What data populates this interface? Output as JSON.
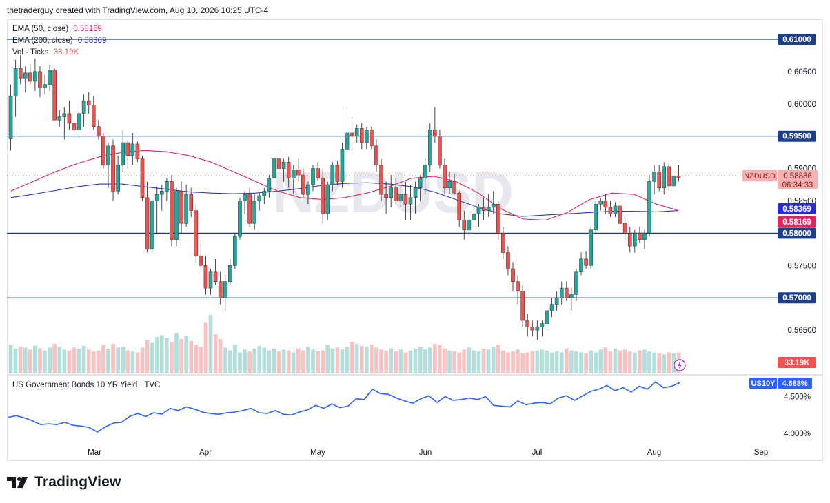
{
  "header": {
    "attribution": "thetraderguy created with TradingView.com, Aug 10, 2026 10:25 UTC-4"
  },
  "legend": {
    "ema50_label": "EMA (50, close)",
    "ema50_value": "0.58169",
    "ema200_label": "EMA (200, close)",
    "ema200_value": "0.58369",
    "vol_label": "Vol · Ticks",
    "vol_value": "33.19K"
  },
  "watermark": "NZDUSD",
  "lower_pane": {
    "title": "US Government Bonds 10 YR Yield · TVC",
    "badge_symbol": "US10Y",
    "badge_value": "4.688%"
  },
  "price_axis": {
    "ticks": [
      "0.60500",
      "0.60000",
      "0.58500",
      "0.57500",
      "0.56500"
    ],
    "level_labels": [
      "0.61000",
      "0.59500",
      "0.58000",
      "0.57000"
    ]
  },
  "badges": {
    "symbol": "NZDUSD",
    "last_price": "0.58886",
    "countdown": "06:34:33",
    "ema200": "0.58369",
    "ema50": "0.58169",
    "volume": "33.19K"
  },
  "yield_axis": {
    "ticks": [
      "4.500%",
      "4.000%"
    ]
  },
  "time_axis": {
    "labels": [
      "Mar",
      "Apr",
      "May",
      "Jun",
      "Jul",
      "Aug",
      "Sep"
    ]
  },
  "brand": {
    "name": "TradingView"
  },
  "colors": {
    "up": "#26a69a",
    "down": "#ef5350",
    "vol_up": "#b2dfdb",
    "vol_down": "#f9c2c2",
    "ema50": "#e0245e",
    "ema200": "#3333cc",
    "yield": "#2962ff",
    "level": "#1e3f8a"
  },
  "chart_data": [
    {
      "type": "candlestick",
      "title": "NZDUSD",
      "ylim": [
        0.5615,
        0.6135
      ],
      "x_labels": [
        "Mar",
        "Apr",
        "May",
        "Jun",
        "Jul",
        "Aug",
        "Sep"
      ],
      "horizontal_levels": [
        0.61,
        0.595,
        0.58,
        0.57
      ],
      "last_price": 0.58886,
      "ohlc": [
        [
          0.5946,
          0.603,
          0.5928,
          0.6012
        ],
        [
          0.6012,
          0.6068,
          0.598,
          0.6055
        ],
        [
          0.6055,
          0.6075,
          0.603,
          0.604
        ],
        [
          0.604,
          0.6058,
          0.6018,
          0.6048
        ],
        [
          0.6048,
          0.6062,
          0.603,
          0.6035
        ],
        [
          0.6035,
          0.607,
          0.602,
          0.605
        ],
        [
          0.605,
          0.6058,
          0.601,
          0.6025
        ],
        [
          0.6025,
          0.6045,
          0.6015,
          0.603
        ],
        [
          0.603,
          0.606,
          0.602,
          0.6052
        ],
        [
          0.6052,
          0.6055,
          0.598,
          0.5975
        ],
        [
          0.5975,
          0.599,
          0.5965,
          0.598
        ],
        [
          0.598,
          0.5995,
          0.5945,
          0.5985
        ],
        [
          0.5985,
          0.6005,
          0.596,
          0.597
        ],
        [
          0.597,
          0.5985,
          0.5948,
          0.596
        ],
        [
          0.596,
          0.599,
          0.595,
          0.5985
        ],
        [
          0.5985,
          0.6015,
          0.5965,
          0.6005
        ],
        [
          0.6005,
          0.6018,
          0.5985,
          0.5998
        ],
        [
          0.5998,
          0.6012,
          0.596,
          0.5965
        ],
        [
          0.5965,
          0.5975,
          0.5945,
          0.595
        ],
        [
          0.595,
          0.5955,
          0.59,
          0.5905
        ],
        [
          0.5905,
          0.594,
          0.587,
          0.5935
        ],
        [
          0.5935,
          0.5945,
          0.585,
          0.5865
        ],
        [
          0.5865,
          0.592,
          0.586,
          0.5905
        ],
        [
          0.5905,
          0.596,
          0.5895,
          0.594
        ],
        [
          0.594,
          0.5945,
          0.59,
          0.592
        ],
        [
          0.592,
          0.5955,
          0.5905,
          0.5938
        ],
        [
          0.5938,
          0.5942,
          0.591,
          0.5915
        ],
        [
          0.5915,
          0.592,
          0.585,
          0.5855
        ],
        [
          0.5855,
          0.588,
          0.577,
          0.5775
        ],
        [
          0.5775,
          0.586,
          0.577,
          0.585
        ],
        [
          0.585,
          0.5872,
          0.58,
          0.586
        ],
        [
          0.586,
          0.5875,
          0.5835,
          0.5865
        ],
        [
          0.5865,
          0.5885,
          0.585,
          0.588
        ],
        [
          0.588,
          0.589,
          0.578,
          0.579
        ],
        [
          0.579,
          0.587,
          0.578,
          0.5865
        ],
        [
          0.5865,
          0.588,
          0.58,
          0.5815
        ],
        [
          0.5815,
          0.5875,
          0.581,
          0.586
        ],
        [
          0.586,
          0.587,
          0.5825,
          0.5835
        ],
        [
          0.5835,
          0.5845,
          0.5755,
          0.5765
        ],
        [
          0.5765,
          0.579,
          0.574,
          0.575
        ],
        [
          0.575,
          0.5765,
          0.5705,
          0.5715
        ],
        [
          0.5715,
          0.5745,
          0.5705,
          0.574
        ],
        [
          0.574,
          0.576,
          0.572,
          0.5725
        ],
        [
          0.5725,
          0.574,
          0.569,
          0.57
        ],
        [
          0.57,
          0.5735,
          0.568,
          0.5725
        ],
        [
          0.5725,
          0.576,
          0.572,
          0.575
        ],
        [
          0.575,
          0.58,
          0.5745,
          0.5795
        ],
        [
          0.5795,
          0.5855,
          0.579,
          0.585
        ],
        [
          0.585,
          0.5865,
          0.583,
          0.586
        ],
        [
          0.586,
          0.587,
          0.581,
          0.5815
        ],
        [
          0.5815,
          0.586,
          0.5805,
          0.585
        ],
        [
          0.585,
          0.5862,
          0.5835,
          0.5858
        ],
        [
          0.5858,
          0.587,
          0.5845,
          0.5865
        ],
        [
          0.5865,
          0.589,
          0.5855,
          0.5885
        ],
        [
          0.5885,
          0.592,
          0.588,
          0.5915
        ],
        [
          0.5915,
          0.5925,
          0.5895,
          0.59
        ],
        [
          0.59,
          0.5915,
          0.588,
          0.591
        ],
        [
          0.591,
          0.5918,
          0.587,
          0.5885
        ],
        [
          0.5885,
          0.5905,
          0.586,
          0.5898
        ],
        [
          0.5898,
          0.5915,
          0.588,
          0.589
        ],
        [
          0.589,
          0.59,
          0.5855,
          0.586
        ],
        [
          0.586,
          0.588,
          0.5845,
          0.5875
        ],
        [
          0.5875,
          0.5905,
          0.5865,
          0.59
        ],
        [
          0.59,
          0.591,
          0.588,
          0.5885
        ],
        [
          0.5885,
          0.59,
          0.5815,
          0.583
        ],
        [
          0.583,
          0.588,
          0.582,
          0.5875
        ],
        [
          0.5875,
          0.591,
          0.5865,
          0.5905
        ],
        [
          0.5905,
          0.5912,
          0.5875,
          0.588
        ],
        [
          0.588,
          0.594,
          0.587,
          0.593
        ],
        [
          0.593,
          0.5995,
          0.5925,
          0.5955
        ],
        [
          0.5955,
          0.5975,
          0.593,
          0.595
        ],
        [
          0.595,
          0.5968,
          0.594,
          0.5962
        ],
        [
          0.5962,
          0.597,
          0.593,
          0.594
        ],
        [
          0.594,
          0.5965,
          0.593,
          0.596
        ],
        [
          0.596,
          0.5965,
          0.593,
          0.5935
        ],
        [
          0.5935,
          0.5945,
          0.5895,
          0.5905
        ],
        [
          0.5905,
          0.5915,
          0.585,
          0.586
        ],
        [
          0.586,
          0.588,
          0.583,
          0.5855
        ],
        [
          0.5855,
          0.589,
          0.584,
          0.587
        ],
        [
          0.587,
          0.5885,
          0.5845,
          0.585
        ],
        [
          0.585,
          0.5875,
          0.584,
          0.586
        ],
        [
          0.586,
          0.588,
          0.582,
          0.5845
        ],
        [
          0.5845,
          0.5875,
          0.582,
          0.5855
        ],
        [
          0.5855,
          0.588,
          0.583,
          0.587
        ],
        [
          0.587,
          0.589,
          0.585,
          0.5885
        ],
        [
          0.5885,
          0.5915,
          0.586,
          0.5905
        ],
        [
          0.5905,
          0.597,
          0.5895,
          0.596
        ],
        [
          0.596,
          0.5995,
          0.594,
          0.595
        ],
        [
          0.595,
          0.596,
          0.59,
          0.5905
        ],
        [
          0.5905,
          0.5915,
          0.586,
          0.587
        ],
        [
          0.587,
          0.5895,
          0.586,
          0.588
        ],
        [
          0.588,
          0.5892,
          0.586,
          0.5862
        ],
        [
          0.5862,
          0.5865,
          0.581,
          0.582
        ],
        [
          0.582,
          0.5835,
          0.579,
          0.5805
        ],
        [
          0.5805,
          0.583,
          0.5795,
          0.582
        ],
        [
          0.582,
          0.586,
          0.581,
          0.583
        ],
        [
          0.583,
          0.5845,
          0.581,
          0.584
        ],
        [
          0.584,
          0.5855,
          0.582,
          0.5835
        ],
        [
          0.5835,
          0.586,
          0.5825,
          0.584
        ],
        [
          0.584,
          0.5865,
          0.583,
          0.5845
        ],
        [
          0.5845,
          0.585,
          0.579,
          0.58
        ],
        [
          0.58,
          0.581,
          0.576,
          0.577
        ],
        [
          0.577,
          0.578,
          0.5735,
          0.5745
        ],
        [
          0.5745,
          0.5755,
          0.571,
          0.5725
        ],
        [
          0.5725,
          0.5735,
          0.569,
          0.571
        ],
        [
          0.571,
          0.572,
          0.5655,
          0.5665
        ],
        [
          0.5665,
          0.5675,
          0.564,
          0.5655
        ],
        [
          0.5655,
          0.5665,
          0.564,
          0.565
        ],
        [
          0.565,
          0.5665,
          0.5635,
          0.5655
        ],
        [
          0.5655,
          0.5665,
          0.564,
          0.566
        ],
        [
          0.566,
          0.569,
          0.565,
          0.568
        ],
        [
          0.568,
          0.57,
          0.567,
          0.569
        ],
        [
          0.569,
          0.571,
          0.568,
          0.57
        ],
        [
          0.57,
          0.5725,
          0.569,
          0.5715
        ],
        [
          0.5715,
          0.5725,
          0.5695,
          0.57
        ],
        [
          0.57,
          0.5715,
          0.568,
          0.5705
        ],
        [
          0.5705,
          0.5745,
          0.5695,
          0.574
        ],
        [
          0.574,
          0.577,
          0.5735,
          0.576
        ],
        [
          0.576,
          0.5772,
          0.5745,
          0.575
        ],
        [
          0.575,
          0.581,
          0.5745,
          0.5805
        ],
        [
          0.5805,
          0.585,
          0.58,
          0.5845
        ],
        [
          0.5845,
          0.5855,
          0.5835,
          0.585
        ],
        [
          0.585,
          0.586,
          0.583,
          0.584
        ],
        [
          0.584,
          0.585,
          0.5825,
          0.583
        ],
        [
          0.583,
          0.5848,
          0.5825,
          0.5842
        ],
        [
          0.5842,
          0.585,
          0.581,
          0.5815
        ],
        [
          0.5815,
          0.5825,
          0.579,
          0.58
        ],
        [
          0.58,
          0.581,
          0.577,
          0.578
        ],
        [
          0.578,
          0.5805,
          0.577,
          0.58
        ],
        [
          0.58,
          0.581,
          0.5785,
          0.579
        ],
        [
          0.579,
          0.5805,
          0.5775,
          0.58
        ],
        [
          0.58,
          0.589,
          0.5795,
          0.588
        ],
        [
          0.588,
          0.5905,
          0.586,
          0.5895
        ],
        [
          0.5895,
          0.5905,
          0.5865,
          0.587
        ],
        [
          0.587,
          0.591,
          0.586,
          0.5903
        ],
        [
          0.5903,
          0.5908,
          0.5865,
          0.5873
        ],
        [
          0.5873,
          0.5895,
          0.5868,
          0.5888
        ],
        [
          0.5888,
          0.5905,
          0.588,
          0.5886
        ]
      ],
      "volume": [
        30,
        26,
        28,
        27,
        25,
        29,
        26,
        24,
        27,
        31,
        28,
        25,
        24,
        27,
        26,
        29,
        25,
        23,
        24,
        30,
        26,
        31,
        27,
        28,
        24,
        23,
        22,
        27,
        35,
        32,
        38,
        40,
        37,
        33,
        42,
        36,
        39,
        34,
        30,
        28,
        45,
        52,
        41,
        36,
        27,
        24,
        30,
        22,
        25,
        23,
        26,
        29,
        27,
        24,
        26,
        23,
        25,
        24,
        22,
        26,
        24,
        28,
        25,
        23,
        24,
        30,
        26,
        27,
        25,
        28,
        33,
        31,
        29,
        28,
        30,
        27,
        25,
        24,
        26,
        23,
        25,
        22,
        24,
        26,
        28,
        25,
        27,
        31,
        30,
        26,
        24,
        23,
        22,
        25,
        27,
        24,
        23,
        26,
        25,
        28,
        30,
        24,
        22,
        23,
        25,
        21,
        22,
        23,
        24,
        25,
        24,
        22,
        23,
        22,
        26,
        24,
        23,
        22,
        21,
        24,
        22,
        25,
        27,
        23,
        26,
        24,
        25,
        23,
        22,
        24,
        25,
        23,
        22,
        21,
        20,
        22,
        21,
        22
      ],
      "ema50": [
        0.5865,
        0.588,
        0.5895,
        0.5908,
        0.5918,
        0.5925,
        0.5928,
        0.5926,
        0.592,
        0.591,
        0.5895,
        0.588,
        0.5865,
        0.5855,
        0.5852,
        0.5855,
        0.5862,
        0.5872,
        0.5885,
        0.5888,
        0.588,
        0.5862,
        0.5838,
        0.5822,
        0.582,
        0.5832,
        0.5852,
        0.5862,
        0.586,
        0.5845,
        0.5835
      ],
      "ema200": [
        0.5855,
        0.586,
        0.5866,
        0.5872,
        0.5876,
        0.5876,
        0.5872,
        0.5868,
        0.5864,
        0.5862,
        0.5861,
        0.5862,
        0.5865,
        0.5869,
        0.5874,
        0.5877,
        0.5878,
        0.5876,
        0.5872,
        0.5864,
        0.5852,
        0.584,
        0.583,
        0.5826,
        0.5828,
        0.583,
        0.5832,
        0.5834,
        0.5834,
        0.5833,
        0.5835
      ],
      "ema_note_series_end": {
        "ema50": 0.58169,
        "ema200": 0.58369
      }
    },
    {
      "type": "line",
      "title": "US Government Bonds 10 YR Yield · TVC",
      "series": [
        {
          "name": "US10Y",
          "values": [
            4.22,
            4.24,
            4.21,
            4.17,
            4.12,
            4.13,
            4.12,
            4.15,
            4.11,
            4.1,
            4.08,
            4.02,
            4.09,
            4.14,
            4.15,
            4.23,
            4.27,
            4.23,
            4.28,
            4.26,
            4.34,
            4.31,
            4.36,
            4.33,
            4.29,
            4.27,
            4.26,
            4.28,
            4.29,
            4.31,
            4.34,
            4.28,
            4.27,
            4.31,
            4.26,
            4.25,
            4.29,
            4.32,
            4.38,
            4.34,
            4.4,
            4.35,
            4.37,
            4.47,
            4.46,
            4.6,
            4.54,
            4.53,
            4.48,
            4.44,
            4.41,
            4.47,
            4.51,
            4.42,
            4.5,
            4.45,
            4.46,
            4.48,
            4.46,
            4.5,
            4.38,
            4.37,
            4.36,
            4.44,
            4.39,
            4.41,
            4.42,
            4.4,
            4.48,
            4.51,
            4.45,
            4.51,
            4.57,
            4.6,
            4.65,
            4.58,
            4.62,
            4.56,
            4.64,
            4.6,
            4.7,
            4.62,
            4.64,
            4.688
          ]
        }
      ],
      "ylim": [
        3.92,
        4.74
      ],
      "last_value": 4.688
    }
  ]
}
